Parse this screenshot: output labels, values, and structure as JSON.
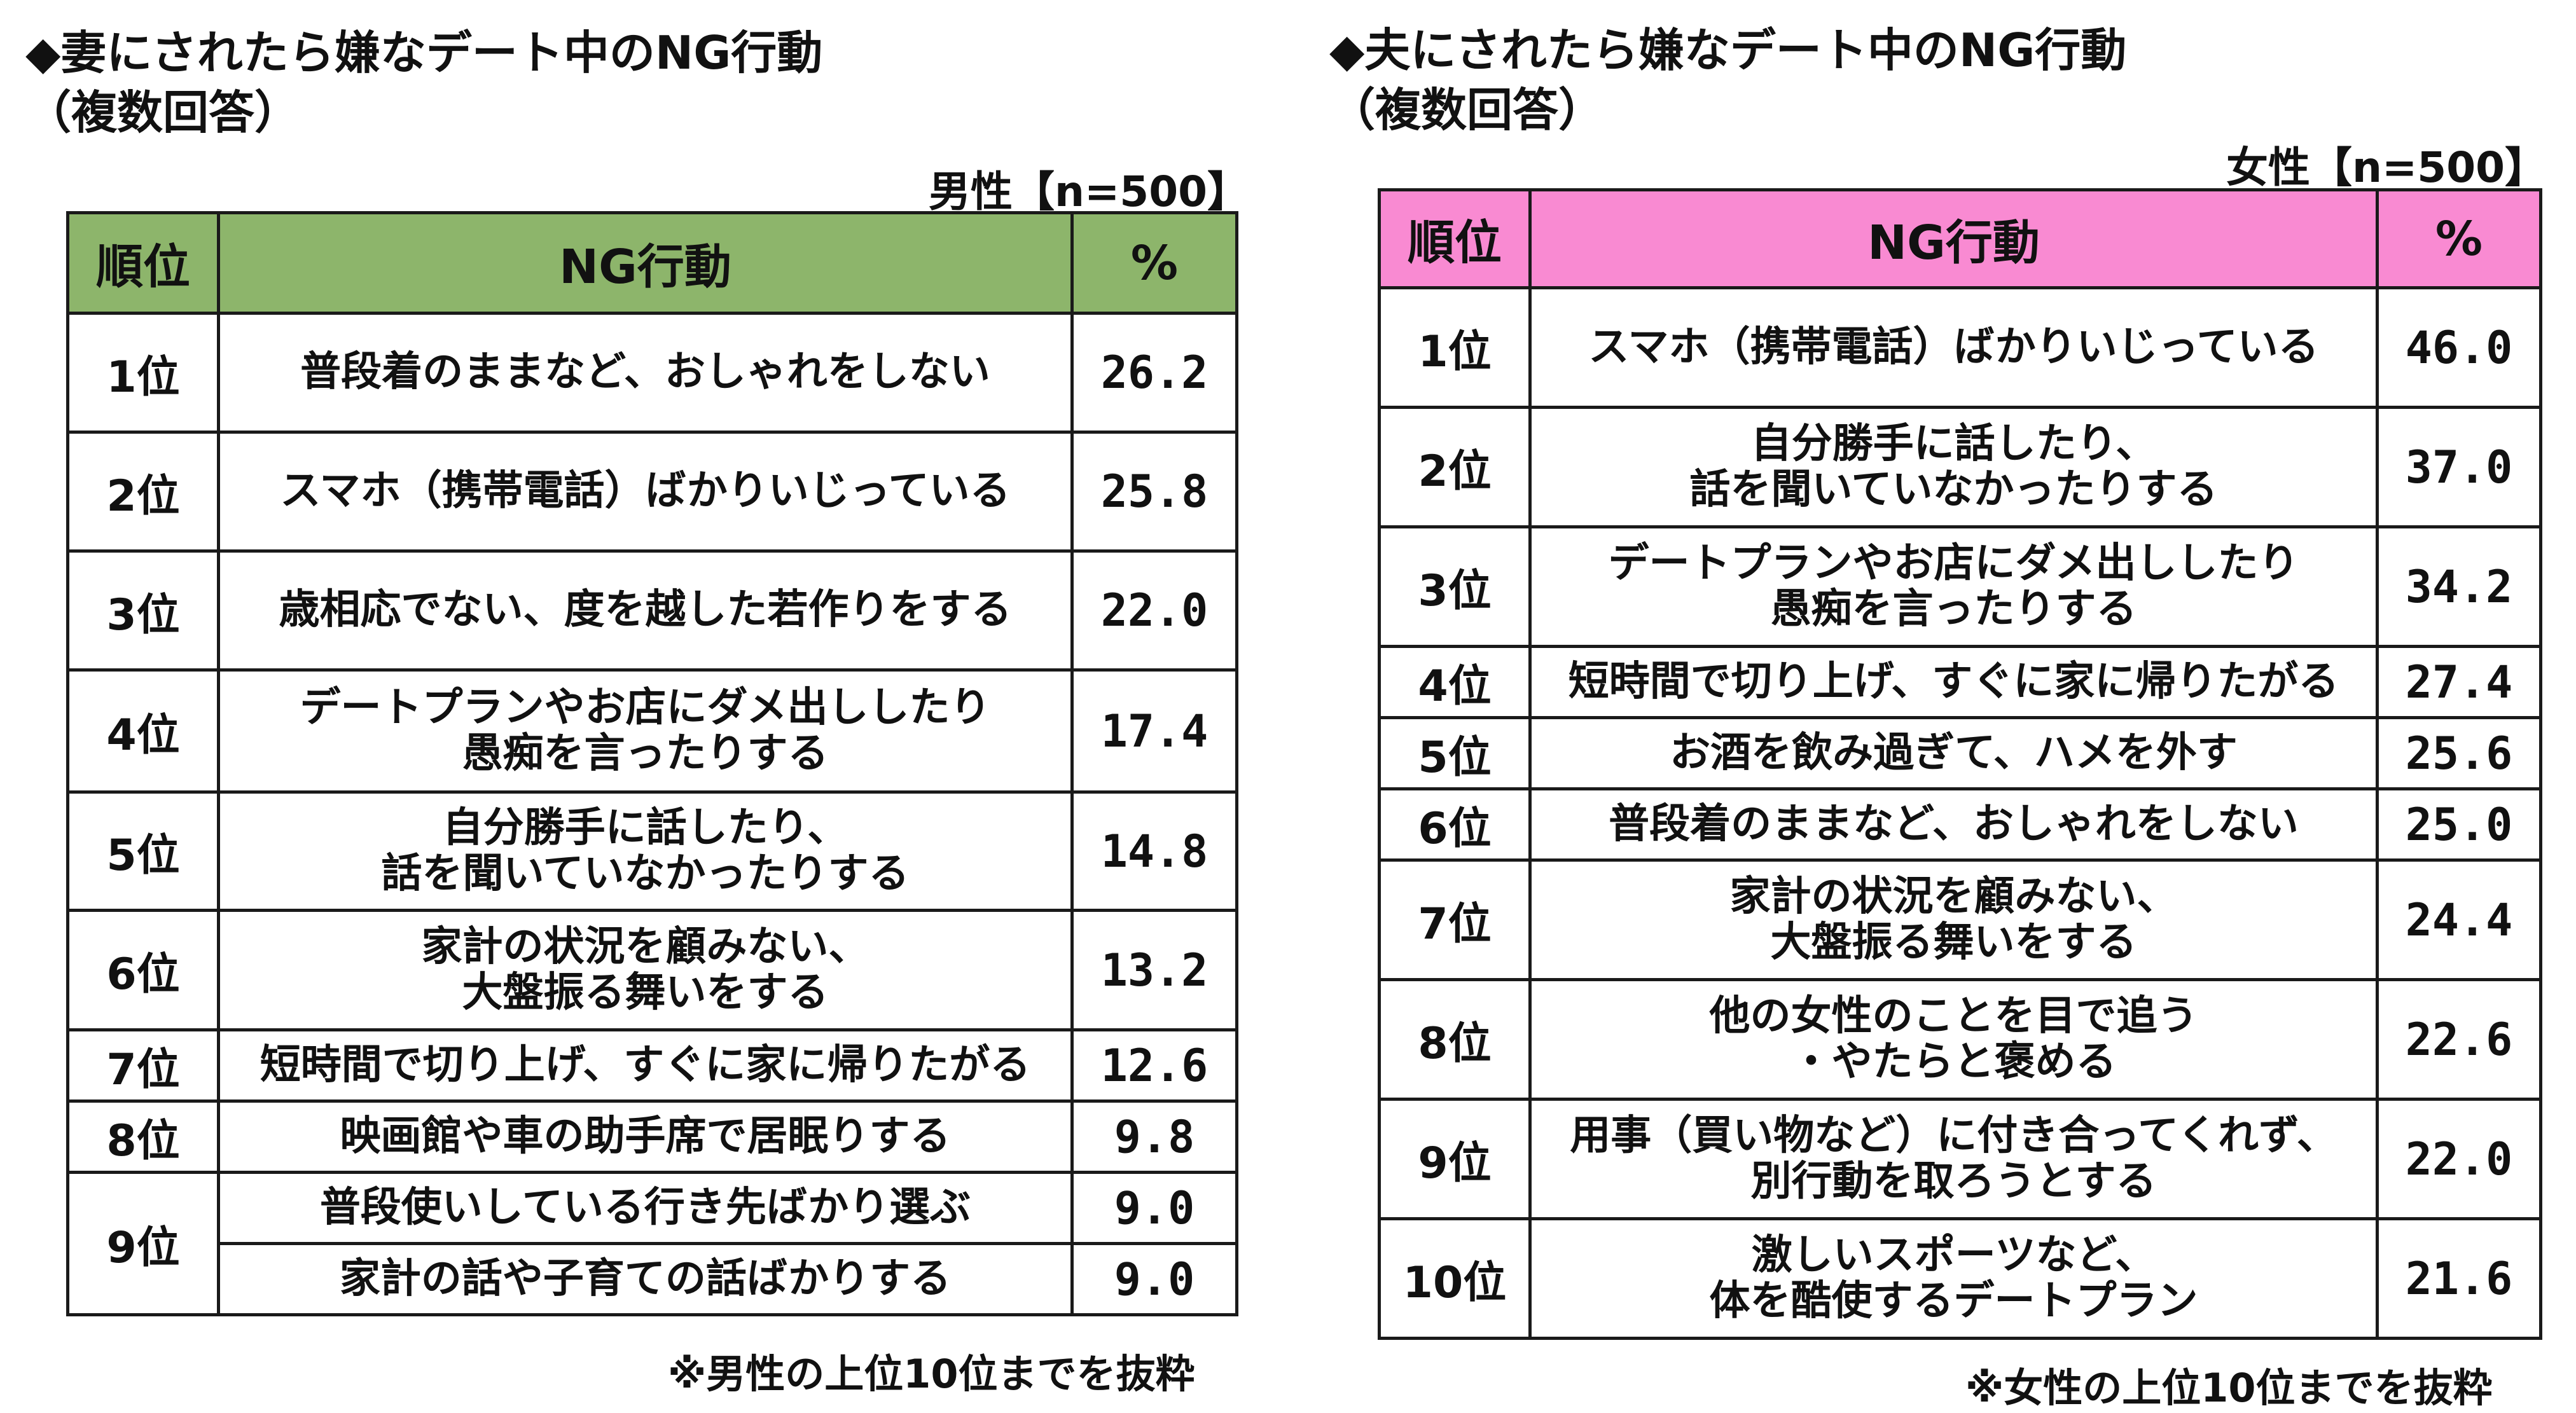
{
  "left_panel": {
    "title": "◆妻にされたら嫌なデート中のNG行動",
    "subtitle": "（複数回答）",
    "sample": "男性【n=500】",
    "header_color": "#8db56b",
    "columns": [
      "順位",
      "NG行動",
      "%"
    ],
    "rows": [
      {
        "rank": "1位",
        "behavior": [
          "普段着のままなど、おしゃれをしない"
        ],
        "pct": "26.2"
      },
      {
        "rank": "2位",
        "behavior": [
          "スマホ（携帯電話）ばかりいじっている"
        ],
        "pct": "25.8"
      },
      {
        "rank": "3位",
        "behavior": [
          "歳相応でない、度を越した若作りをする"
        ],
        "pct": "22.0"
      },
      {
        "rank": "4位",
        "behavior": [
          "デートプランやお店にダメ出ししたり",
          "愚痴を言ったりする"
        ],
        "pct": "17.4"
      },
      {
        "rank": "5位",
        "behavior": [
          "自分勝手に話したり、",
          "話を聞いていなかったりする"
        ],
        "pct": "14.8"
      },
      {
        "rank": "6位",
        "behavior": [
          "家計の状況を顧みない、",
          "大盤振る舞いをする"
        ],
        "pct": "13.2"
      },
      {
        "rank": "7位",
        "behavior": [
          "短時間で切り上げ、すぐに家に帰りたがる"
        ],
        "pct": "12.6"
      },
      {
        "rank": "8位",
        "behavior": [
          "映画館や車の助手席で居眠りする"
        ],
        "pct": "9.8"
      },
      {
        "rank": "9位",
        "behavior": [
          "普段使いしている行き先ばかり選ぶ"
        ],
        "pct": "9.0"
      },
      {
        "rank": "",
        "behavior": [
          "家計の話や子育ての話ばかりする"
        ],
        "pct": "9.0"
      }
    ],
    "note": "※男性の上位10位までを抜粋"
  },
  "right_panel": {
    "title": "◆夫にされたら嫌なデート中のNG行動",
    "subtitle": "（複数回答）",
    "sample": "女性【n=500】",
    "header_color": "#f98ad2",
    "columns": [
      "順位",
      "NG行動",
      "%"
    ],
    "rows": [
      {
        "rank": "1位",
        "behavior": [
          "スマホ（携帯電話）ばかりいじっている"
        ],
        "pct": "46.0"
      },
      {
        "rank": "2位",
        "behavior": [
          "自分勝手に話したり、",
          "話を聞いていなかったりする"
        ],
        "pct": "37.0"
      },
      {
        "rank": "3位",
        "behavior": [
          "デートプランやお店にダメ出ししたり",
          "愚痴を言ったりする"
        ],
        "pct": "34.2"
      },
      {
        "rank": "4位",
        "behavior": [
          "短時間で切り上げ、すぐに家に帰りたがる"
        ],
        "pct": "27.4"
      },
      {
        "rank": "5位",
        "behavior": [
          "お酒を飲み過ぎて、ハメを外す"
        ],
        "pct": "25.6"
      },
      {
        "rank": "6位",
        "behavior": [
          "普段着のままなど、おしゃれをしない"
        ],
        "pct": "25.0"
      },
      {
        "rank": "7位",
        "behavior": [
          "家計の状況を顧みない、",
          "大盤振る舞いをする"
        ],
        "pct": "24.4"
      },
      {
        "rank": "8位",
        "behavior": [
          "他の女性のことを目で追う",
          "・やたらと褒める"
        ],
        "pct": "22.6"
      },
      {
        "rank": "9位",
        "behavior": [
          "用事（買い物など）に付き合ってくれず、",
          "別行動を取ろうとする"
        ],
        "pct": "22.0"
      },
      {
        "rank": "10位",
        "behavior": [
          "激しいスポーツなど、",
          "体を酷使するデートプラン"
        ],
        "pct": "21.6"
      }
    ],
    "note": "※女性の上位10位までを抜粋"
  }
}
